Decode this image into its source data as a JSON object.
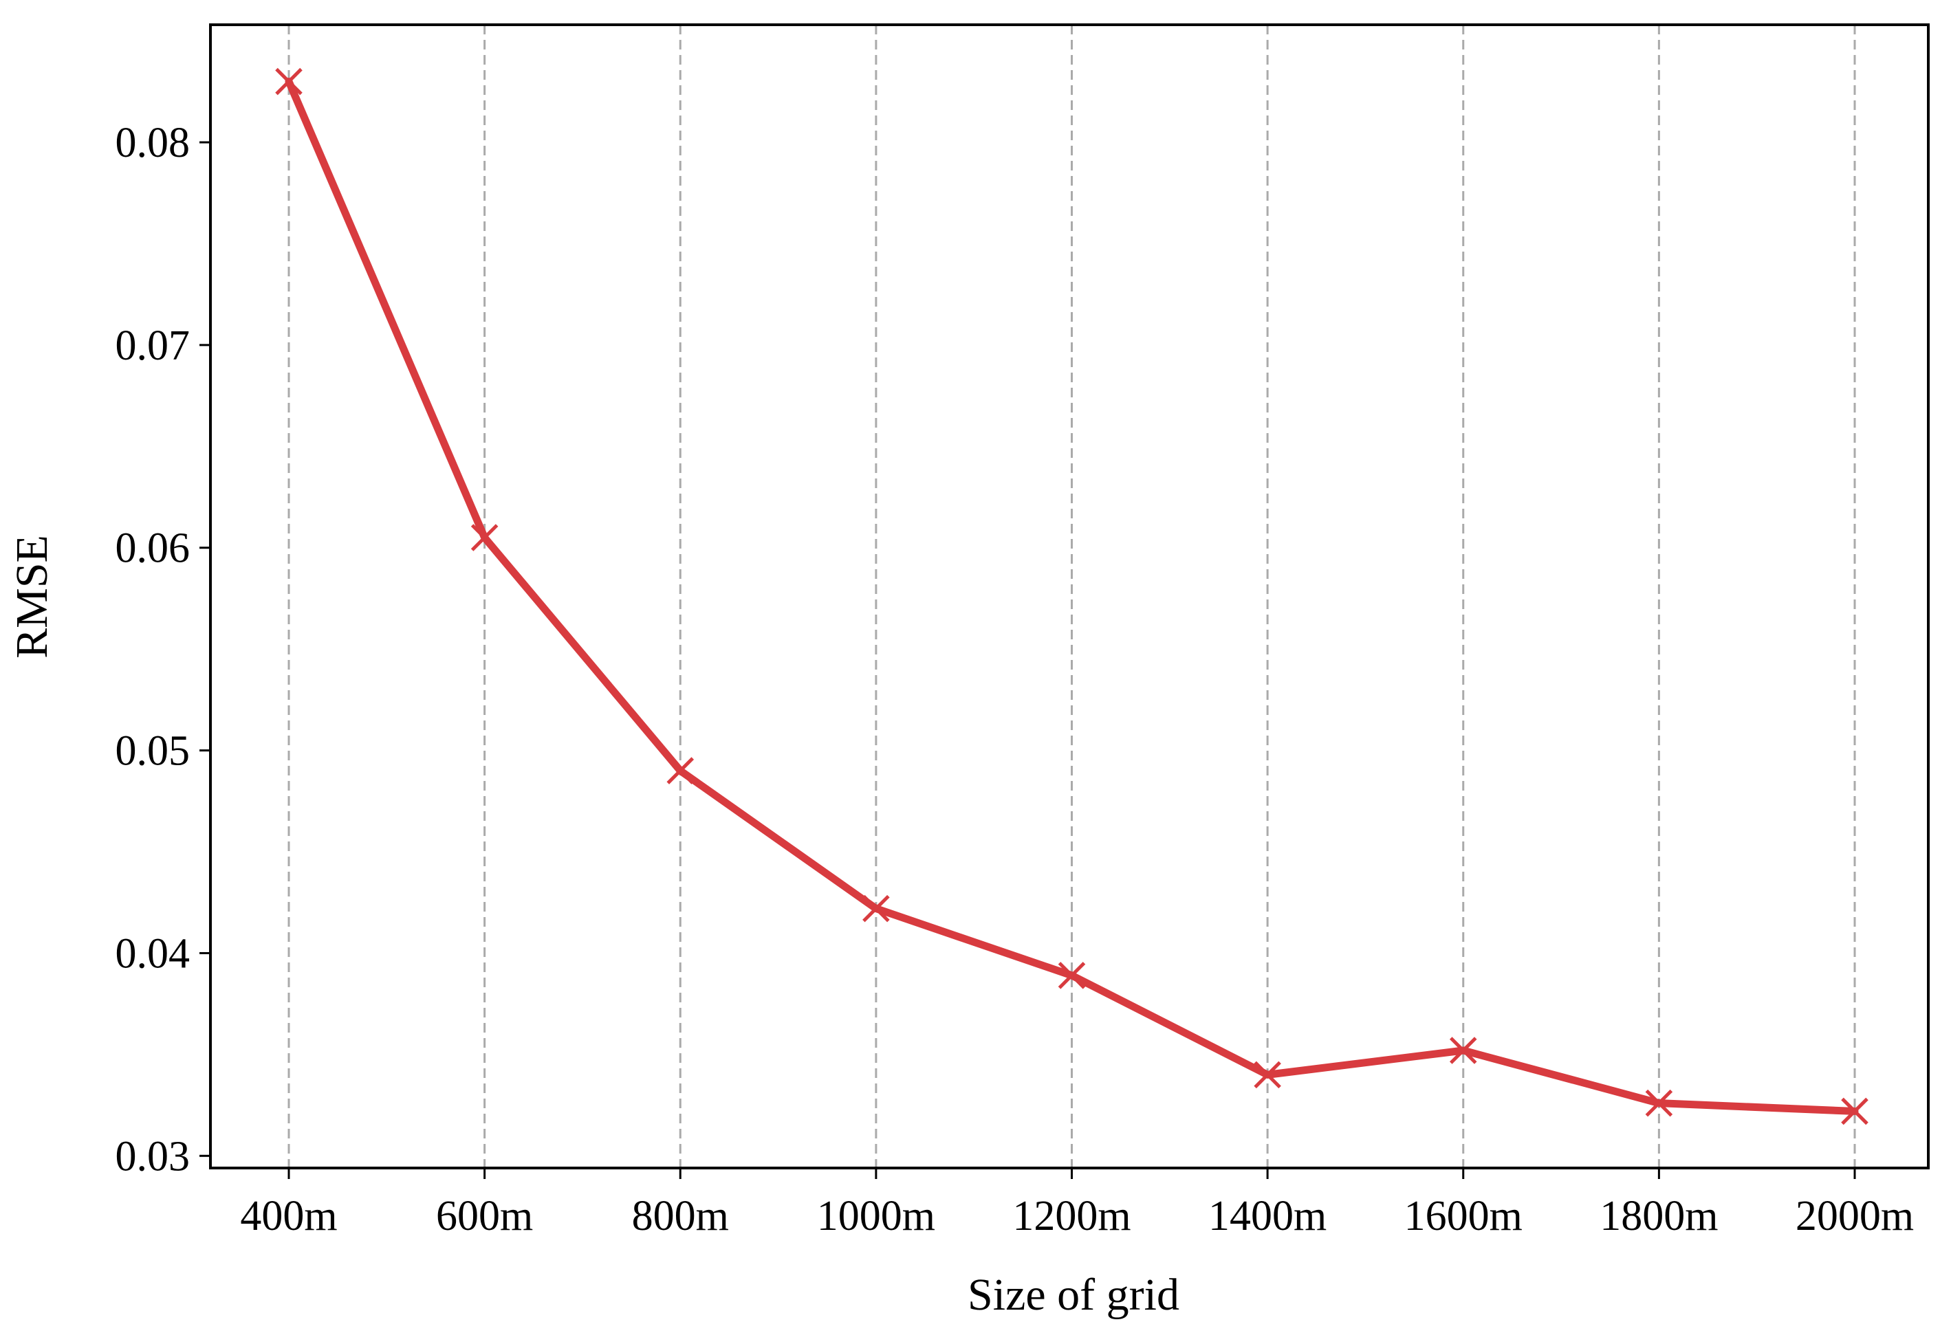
{
  "chart_data": {
    "type": "line",
    "title": "",
    "xlabel": "Size of grid",
    "ylabel": "RMSE",
    "categories": [
      "400m",
      "600m",
      "800m",
      "1000m",
      "1200m",
      "1400m",
      "1600m",
      "1800m",
      "2000m"
    ],
    "series": [
      {
        "values": [
          0.083,
          0.0605,
          0.049,
          0.0422,
          0.0389,
          0.034,
          0.0352,
          0.0326,
          0.0322
        ],
        "marker": "x",
        "color": "#d83b3f"
      }
    ],
    "y_ticks": [
      "0.03",
      "0.04",
      "0.05",
      "0.06",
      "0.07",
      "0.08"
    ],
    "y_tick_values": [
      0.03,
      0.04,
      0.05,
      0.06,
      0.07,
      0.08
    ],
    "ylim": [
      0.0294,
      0.0858
    ],
    "grid": "vertical dashed",
    "grid_color": "#aaaaaa",
    "axis_color": "#000000"
  }
}
